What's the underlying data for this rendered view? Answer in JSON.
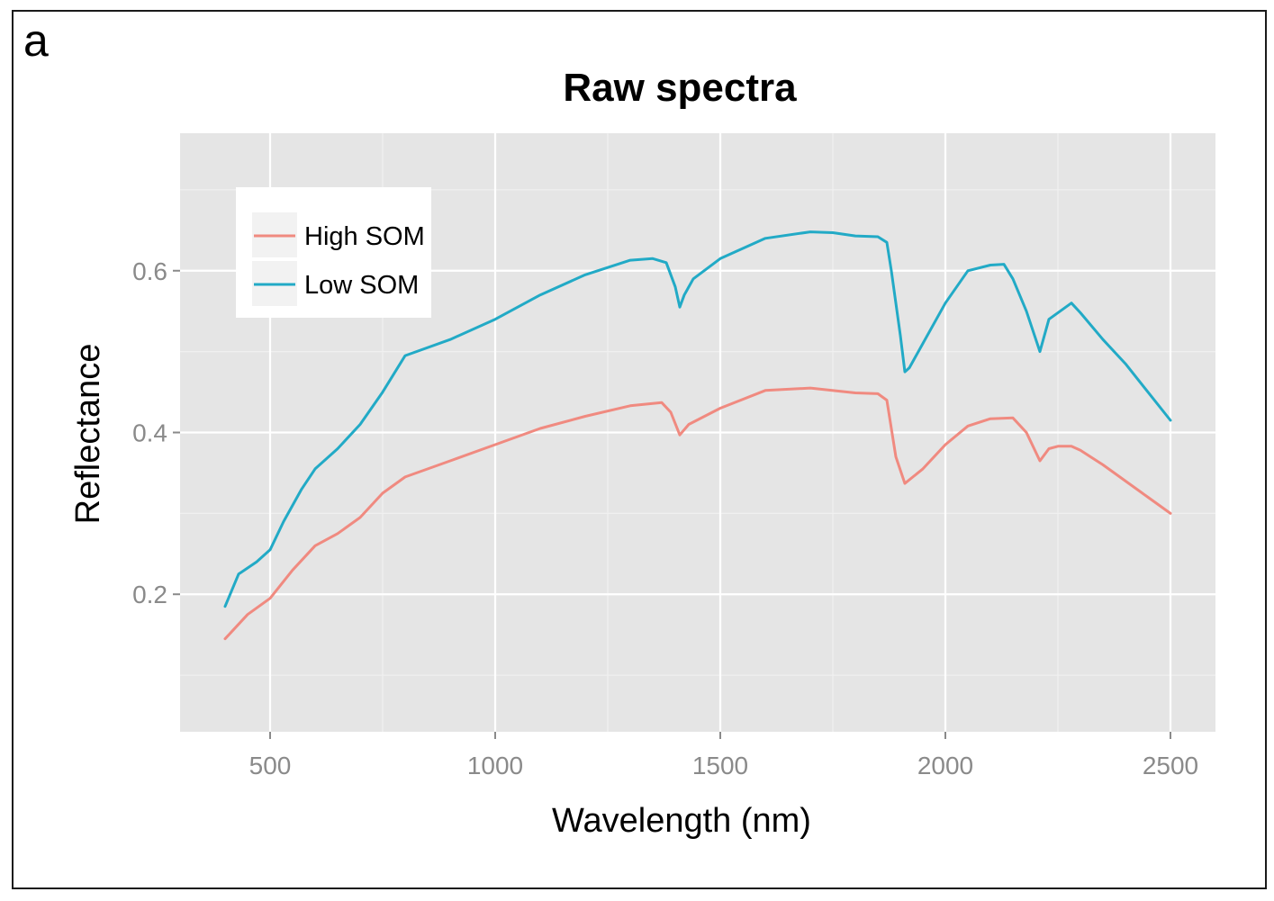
{
  "panel_label": "a",
  "colors": {
    "panel_background": "#e5e5e5",
    "grid_major": "#ffffff",
    "grid_minor": "#f0f0f0",
    "high_som": "#f08a80",
    "low_som": "#22aac6",
    "tick_text": "#8a8a8a"
  },
  "chart_data": {
    "type": "line",
    "title": "Raw spectra",
    "xlabel": "Wavelength (nm)",
    "ylabel": "Reflectance",
    "xlim": [
      300,
      2600
    ],
    "ylim": [
      0.03,
      0.77
    ],
    "x_ticks": [
      500,
      1000,
      1500,
      2000,
      2500
    ],
    "x_tick_labels": [
      "500",
      "1000",
      "1500",
      "2000",
      "2500"
    ],
    "y_ticks": [
      0.2,
      0.4,
      0.6
    ],
    "y_tick_labels": [
      "0.2",
      "0.4",
      "0.6"
    ],
    "grid": true,
    "legend_position": "top-left",
    "series": [
      {
        "name": "High SOM",
        "color": "#f08a80",
        "x": [
          400,
          450,
          500,
          550,
          600,
          650,
          700,
          750,
          800,
          900,
          1000,
          1100,
          1200,
          1300,
          1370,
          1390,
          1410,
          1430,
          1500,
          1600,
          1700,
          1800,
          1850,
          1870,
          1890,
          1910,
          1950,
          2000,
          2050,
          2100,
          2150,
          2180,
          2210,
          2230,
          2250,
          2280,
          2300,
          2350,
          2400,
          2450,
          2500
        ],
        "values": [
          0.145,
          0.175,
          0.195,
          0.23,
          0.26,
          0.275,
          0.295,
          0.325,
          0.345,
          0.365,
          0.385,
          0.405,
          0.42,
          0.433,
          0.437,
          0.425,
          0.397,
          0.41,
          0.43,
          0.452,
          0.455,
          0.449,
          0.448,
          0.44,
          0.37,
          0.337,
          0.355,
          0.385,
          0.408,
          0.417,
          0.418,
          0.4,
          0.365,
          0.38,
          0.383,
          0.383,
          0.378,
          0.36,
          0.34,
          0.32,
          0.3
        ]
      },
      {
        "name": "Low SOM",
        "color": "#22aac6",
        "x": [
          400,
          430,
          470,
          500,
          530,
          570,
          600,
          650,
          700,
          750,
          800,
          900,
          1000,
          1100,
          1200,
          1300,
          1350,
          1380,
          1400,
          1410,
          1420,
          1440,
          1500,
          1600,
          1700,
          1750,
          1800,
          1850,
          1870,
          1880,
          1900,
          1910,
          1920,
          1950,
          2000,
          2050,
          2100,
          2130,
          2150,
          2180,
          2210,
          2230,
          2280,
          2300,
          2350,
          2400,
          2450,
          2500
        ],
        "values": [
          0.185,
          0.225,
          0.24,
          0.255,
          0.29,
          0.33,
          0.355,
          0.38,
          0.41,
          0.45,
          0.495,
          0.515,
          0.54,
          0.57,
          0.595,
          0.613,
          0.615,
          0.61,
          0.58,
          0.555,
          0.57,
          0.59,
          0.615,
          0.64,
          0.648,
          0.647,
          0.643,
          0.642,
          0.635,
          0.6,
          0.52,
          0.475,
          0.48,
          0.51,
          0.56,
          0.6,
          0.607,
          0.608,
          0.59,
          0.55,
          0.5,
          0.54,
          0.56,
          0.548,
          0.515,
          0.485,
          0.45,
          0.415
        ]
      }
    ]
  }
}
